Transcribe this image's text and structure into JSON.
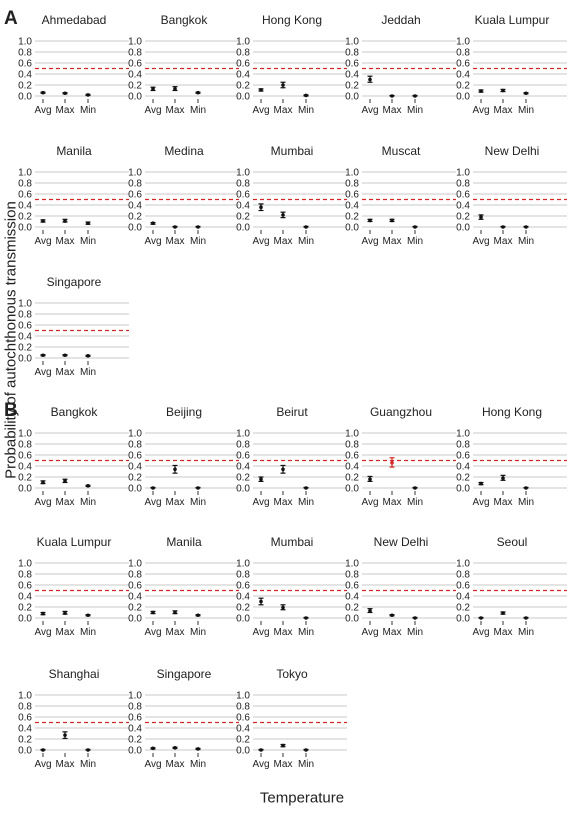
{
  "labels": {
    "ylabel": "Probability of autochthonous transmission",
    "xlabel": "Temperature"
  },
  "colors": {
    "gridline": "#c8c8c8",
    "threshold": "#d62728",
    "point": "#111111",
    "highlight": "#d62728"
  },
  "chart_data": [
    {
      "panel": "A",
      "type": "scatter",
      "errorbars": true,
      "categories": [
        "Avg",
        "Max",
        "Min"
      ],
      "ylim": [
        0,
        1.0
      ],
      "yticks": [
        "0.0",
        "0.2",
        "0.4",
        "0.6",
        "0.8",
        "1.0"
      ],
      "threshold": 0.5,
      "grid": true,
      "facets": [
        {
          "title": "Ahmedabad",
          "values": [
            0.06,
            0.05,
            0.02
          ],
          "lower": [
            0.05,
            0.04,
            0.01
          ],
          "upper": [
            0.07,
            0.06,
            0.03
          ]
        },
        {
          "title": "Bangkok",
          "values": [
            0.13,
            0.13,
            0.06
          ],
          "lower": [
            0.1,
            0.1,
            0.05
          ],
          "upper": [
            0.16,
            0.17,
            0.07
          ]
        },
        {
          "title": "Hong Kong",
          "values": [
            0.11,
            0.2,
            0.01
          ],
          "lower": [
            0.09,
            0.15,
            0.0
          ],
          "upper": [
            0.13,
            0.25,
            0.02
          ]
        },
        {
          "title": "Jeddah",
          "values": [
            0.3,
            0.0,
            0.0
          ],
          "lower": [
            0.25,
            0.0,
            0.0
          ],
          "upper": [
            0.36,
            0.01,
            0.01
          ]
        },
        {
          "title": "Kuala Lumpur",
          "values": [
            0.09,
            0.1,
            0.05
          ],
          "lower": [
            0.07,
            0.08,
            0.04
          ],
          "upper": [
            0.11,
            0.12,
            0.06
          ]
        },
        {
          "title": "Manila",
          "values": [
            0.11,
            0.11,
            0.07
          ],
          "lower": [
            0.09,
            0.09,
            0.05
          ],
          "upper": [
            0.13,
            0.14,
            0.09
          ]
        },
        {
          "title": "Medina",
          "values": [
            0.07,
            0.0,
            0.0
          ],
          "lower": [
            0.05,
            0.0,
            0.0
          ],
          "upper": [
            0.08,
            0.01,
            0.01
          ]
        },
        {
          "title": "Mumbai",
          "values": [
            0.36,
            0.22,
            0.0
          ],
          "lower": [
            0.3,
            0.17,
            0.0
          ],
          "upper": [
            0.42,
            0.27,
            0.01
          ]
        },
        {
          "title": "Muscat",
          "values": [
            0.12,
            0.12,
            0.0
          ],
          "lower": [
            0.1,
            0.1,
            0.0
          ],
          "upper": [
            0.14,
            0.14,
            0.01
          ]
        },
        {
          "title": "New Delhi",
          "values": [
            0.18,
            0.0,
            0.0
          ],
          "lower": [
            0.14,
            0.0,
            0.0
          ],
          "upper": [
            0.22,
            0.01,
            0.01
          ]
        },
        {
          "title": "Singapore",
          "values": [
            0.05,
            0.05,
            0.04
          ],
          "lower": [
            0.04,
            0.04,
            0.03
          ],
          "upper": [
            0.06,
            0.06,
            0.05
          ]
        }
      ]
    },
    {
      "panel": "B",
      "type": "scatter",
      "errorbars": true,
      "categories": [
        "Avg",
        "Max",
        "Min"
      ],
      "ylim": [
        0,
        1.0
      ],
      "yticks": [
        "0.0",
        "0.2",
        "0.4",
        "0.6",
        "0.8",
        "1.0"
      ],
      "threshold": 0.5,
      "grid": true,
      "facets": [
        {
          "title": "Bangkok",
          "values": [
            0.1,
            0.13,
            0.04
          ],
          "lower": [
            0.08,
            0.1,
            0.03
          ],
          "upper": [
            0.13,
            0.16,
            0.05
          ]
        },
        {
          "title": "Beijing",
          "values": [
            0.0,
            0.34,
            0.0
          ],
          "lower": [
            0.0,
            0.27,
            0.0
          ],
          "upper": [
            0.01,
            0.41,
            0.01
          ]
        },
        {
          "title": "Beirut",
          "values": [
            0.16,
            0.34,
            0.0
          ],
          "lower": [
            0.12,
            0.27,
            0.0
          ],
          "upper": [
            0.2,
            0.41,
            0.01
          ]
        },
        {
          "title": "Guangzhou",
          "values": [
            0.16,
            0.46,
            0.0
          ],
          "lower": [
            0.12,
            0.38,
            0.0
          ],
          "upper": [
            0.21,
            0.55,
            0.01
          ],
          "highlight": [
            1
          ]
        },
        {
          "title": "Hong Kong",
          "values": [
            0.08,
            0.18,
            0.0
          ],
          "lower": [
            0.06,
            0.14,
            0.0
          ],
          "upper": [
            0.1,
            0.23,
            0.01
          ]
        },
        {
          "title": "Kuala Lumpur",
          "values": [
            0.08,
            0.09,
            0.05
          ],
          "lower": [
            0.06,
            0.07,
            0.04
          ],
          "upper": [
            0.1,
            0.12,
            0.06
          ]
        },
        {
          "title": "Manila",
          "values": [
            0.1,
            0.1,
            0.05
          ],
          "lower": [
            0.08,
            0.08,
            0.04
          ],
          "upper": [
            0.12,
            0.13,
            0.06
          ]
        },
        {
          "title": "Mumbai",
          "values": [
            0.3,
            0.19,
            0.0
          ],
          "lower": [
            0.24,
            0.15,
            0.0
          ],
          "upper": [
            0.36,
            0.24,
            0.01
          ]
        },
        {
          "title": "New Delhi",
          "values": [
            0.13,
            0.05,
            0.0
          ],
          "lower": [
            0.1,
            0.04,
            0.0
          ],
          "upper": [
            0.17,
            0.06,
            0.01
          ]
        },
        {
          "title": "Seoul",
          "values": [
            0.0,
            0.09,
            0.0
          ],
          "lower": [
            0.0,
            0.07,
            0.0
          ],
          "upper": [
            0.01,
            0.11,
            0.01
          ]
        },
        {
          "title": "Shanghai",
          "values": [
            0.0,
            0.27,
            0.0
          ],
          "lower": [
            0.0,
            0.21,
            0.0
          ],
          "upper": [
            0.01,
            0.33,
            0.01
          ]
        },
        {
          "title": "Singapore",
          "values": [
            0.03,
            0.04,
            0.02
          ],
          "lower": [
            0.02,
            0.03,
            0.01
          ],
          "upper": [
            0.04,
            0.05,
            0.03
          ]
        },
        {
          "title": "Tokyo",
          "values": [
            0.0,
            0.08,
            0.0
          ],
          "lower": [
            0.0,
            0.06,
            0.0
          ],
          "upper": [
            0.01,
            0.1,
            0.01
          ]
        }
      ]
    }
  ]
}
